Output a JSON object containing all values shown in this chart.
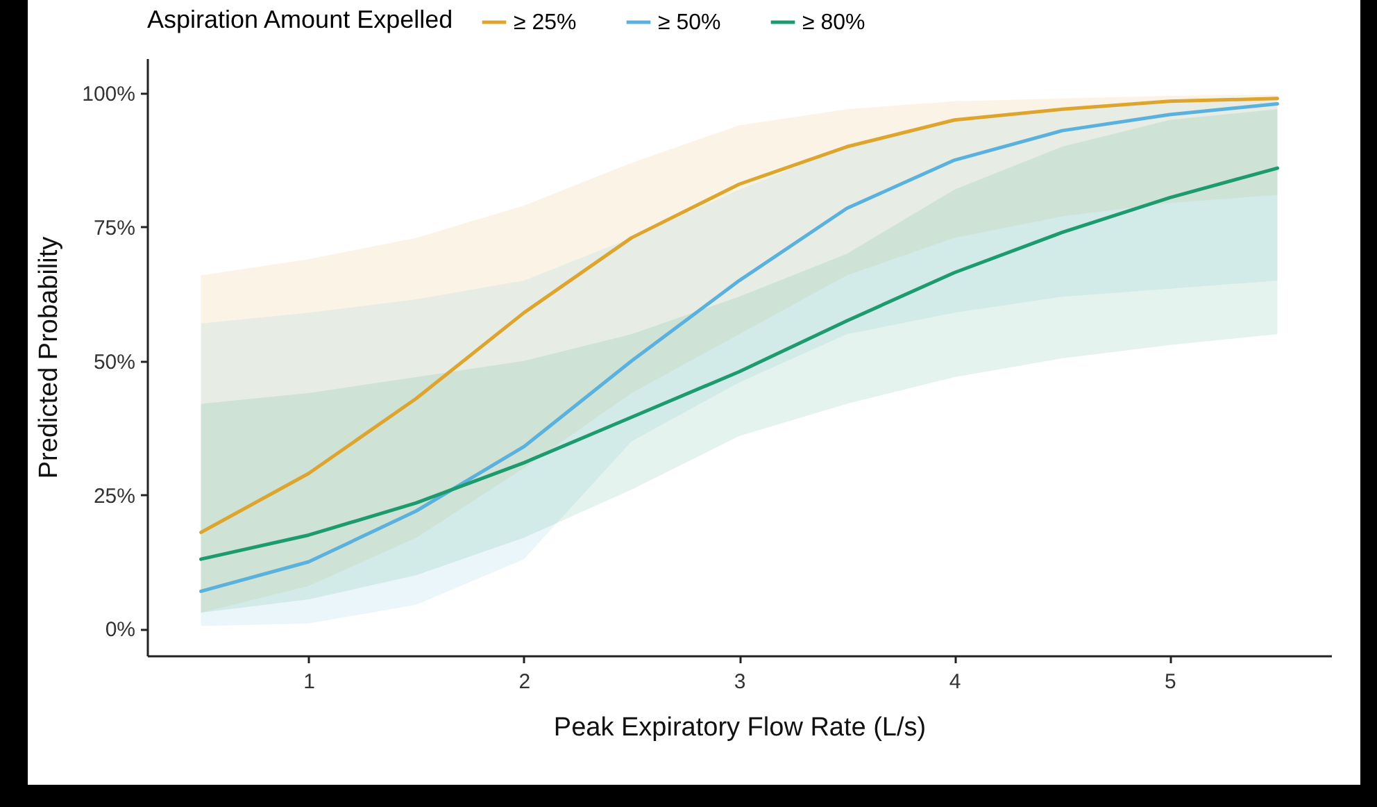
{
  "chart_data": {
    "type": "line",
    "xlabel": "Peak Expiratory Flow Rate (L/s)",
    "ylabel": "Predicted Probability",
    "legend_title": "Aspiration Amount Expelled",
    "legend": "top left",
    "x": [
      0.5,
      1,
      1.5,
      2,
      2.5,
      3,
      3.5,
      4,
      4.5,
      5,
      5.5
    ],
    "series": [
      {
        "name": "≥ 25%",
        "color": "#dea52e",
        "values": [
          18,
          29,
          43,
          59,
          73,
          83,
          90,
          95,
          97,
          98.5,
          99
        ],
        "lower": [
          3,
          8,
          17,
          30,
          44,
          55,
          66,
          73,
          77,
          79.5,
          81
        ],
        "upper": [
          66,
          69,
          73,
          79,
          87,
          94,
          97,
          98.5,
          99,
          99.5,
          99.7
        ]
      },
      {
        "name": "≥ 50%",
        "color": "#5bb1de",
        "values": [
          7,
          12.5,
          22,
          34,
          50,
          65,
          78.5,
          87.5,
          93,
          96,
          98
        ],
        "lower": [
          0.5,
          1,
          4.5,
          13,
          35,
          46,
          55,
          59,
          62,
          63.5,
          65
        ],
        "upper": [
          57,
          59,
          61.5,
          65,
          73,
          82,
          90,
          95,
          97,
          98.5,
          99
        ]
      },
      {
        "name": "≥ 80%",
        "color": "#1d9b6f",
        "values": [
          13,
          17.5,
          23.5,
          31,
          39.5,
          48,
          57.5,
          66.5,
          74,
          80.5,
          86
        ],
        "lower": [
          3,
          5.5,
          10,
          17,
          26,
          36,
          42,
          47,
          50.5,
          53,
          55
        ],
        "upper": [
          42,
          44,
          47,
          50,
          55,
          62,
          70,
          82,
          90,
          95,
          97
        ]
      }
    ],
    "xlim": [
      0.25,
      5.75
    ],
    "ylim": [
      -5,
      106.5
    ],
    "xticks": [
      1,
      2,
      3,
      4,
      5
    ],
    "yticks": [
      {
        "value": 0,
        "label": "0%"
      },
      {
        "value": 25,
        "label": "25%"
      },
      {
        "value": 50,
        "label": "50%"
      },
      {
        "value": 75,
        "label": "75%"
      },
      {
        "value": 100,
        "label": "100%"
      }
    ]
  }
}
